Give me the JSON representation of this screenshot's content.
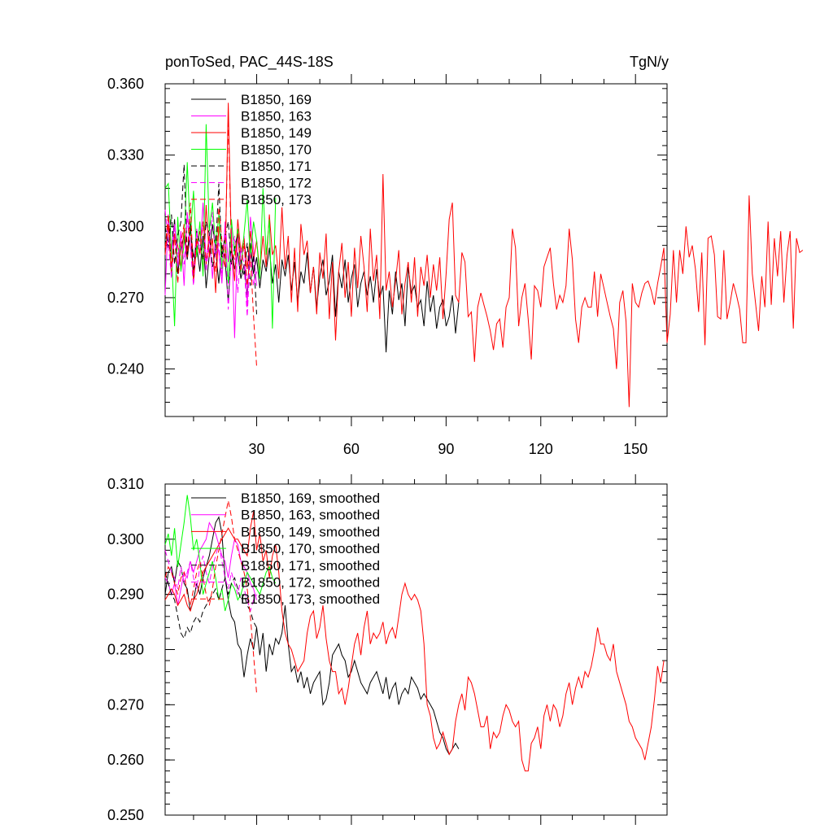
{
  "chart_data": [
    {
      "type": "line",
      "title": "ponToSed, PAC_44S-18S",
      "units": "TgN/y",
      "xlim": [
        1,
        160
      ],
      "ylim": [
        0.22,
        0.36
      ],
      "xticks": [
        30,
        60,
        90,
        120,
        150
      ],
      "yticks": [
        0.24,
        0.27,
        0.3,
        0.33,
        0.36
      ],
      "ytick_labels": [
        "0.240",
        "0.270",
        "0.300",
        "0.330",
        "0.360"
      ],
      "series": [
        {
          "name": "B1850, 169",
          "color": "#000000",
          "dash": "solid",
          "values": [
            0.294,
            0.292,
            0.289,
            0.303,
            0.28,
            0.291,
            0.296,
            0.286,
            0.299,
            0.287,
            0.292,
            0.281,
            0.296,
            0.274,
            0.288,
            0.301,
            0.29,
            0.276,
            0.292,
            0.286,
            0.268,
            0.291,
            0.282,
            0.289,
            0.278,
            0.284,
            0.271,
            0.293,
            0.28,
            0.287,
            0.274,
            0.286,
            0.281,
            0.291,
            0.276,
            0.284,
            0.268,
            0.286,
            0.279,
            0.288,
            0.273,
            0.285,
            0.268,
            0.281,
            0.276,
            0.289,
            0.272,
            0.283,
            0.266,
            0.279,
            0.286,
            0.271,
            0.277,
            0.288,
            0.262,
            0.281,
            0.274,
            0.286,
            0.268,
            0.278,
            0.284,
            0.266,
            0.276,
            0.281,
            0.271,
            0.279,
            0.268,
            0.282,
            0.27,
            0.275,
            0.247,
            0.273,
            0.263,
            0.281,
            0.269,
            0.276,
            0.258,
            0.283,
            0.272,
            0.275,
            0.266,
            0.269,
            0.258,
            0.277,
            0.264,
            0.271,
            0.257,
            0.266,
            0.269,
            0.258,
            0.262,
            0.271,
            0.255,
            0.268
          ]
        },
        {
          "name": "B1850, 163",
          "color": "#ff00ff",
          "dash": "solid",
          "values": [
            0.271,
            0.305,
            0.289,
            0.301,
            0.283,
            0.298,
            0.275,
            0.306,
            0.292,
            0.281,
            0.299,
            0.288,
            0.31,
            0.285,
            0.297,
            0.278,
            0.296,
            0.289,
            0.276,
            0.302,
            0.285,
            0.3,
            0.253,
            0.298,
            0.284,
            0.296,
            0.266,
            0.304,
            0.29,
            0.275
          ]
        },
        {
          "name": "B1850, 149",
          "color": "#ff0000",
          "dash": "solid",
          "values": [
            0.288,
            0.301,
            0.279,
            0.296,
            0.292,
            0.282,
            0.299,
            0.288,
            0.302,
            0.276,
            0.293,
            0.298,
            0.281,
            0.309,
            0.287,
            0.295,
            0.272,
            0.3,
            0.288,
            0.283,
            0.352,
            0.291,
            0.277,
            0.303,
            0.289,
            0.295,
            0.282,
            0.298,
            0.286,
            0.294,
            0.281,
            0.296,
            0.283,
            0.305,
            0.288,
            0.292,
            0.278,
            0.308,
            0.282,
            0.296,
            0.268,
            0.291,
            0.264,
            0.301,
            0.288,
            0.294,
            0.272,
            0.283,
            0.263,
            0.289,
            0.278,
            0.297,
            0.261,
            0.285,
            0.252,
            0.281,
            0.293,
            0.27,
            0.285,
            0.262,
            0.291,
            0.274,
            0.296,
            0.283,
            0.264,
            0.299,
            0.277,
            0.288,
            0.261,
            0.322,
            0.273,
            0.281,
            0.266,
            0.277,
            0.29,
            0.263,
            0.276,
            0.285,
            0.268,
            0.287,
            0.262,
            0.283,
            0.275,
            0.288,
            0.27,
            0.284,
            0.273,
            0.287,
            0.261,
            0.28,
            0.303,
            0.31,
            0.271,
            0.268,
            0.289,
            0.285,
            0.262,
            0.264,
            0.243,
            0.266,
            0.272,
            0.267,
            0.262,
            0.256,
            0.248,
            0.259,
            0.261,
            0.249,
            0.266,
            0.27,
            0.299,
            0.291,
            0.258,
            0.27,
            0.276,
            0.261,
            0.244,
            0.275,
            0.273,
            0.266,
            0.283,
            0.287,
            0.291,
            0.276,
            0.265,
            0.271,
            0.268,
            0.275,
            0.299,
            0.286,
            0.261,
            0.251,
            0.266,
            0.27,
            0.266,
            0.266,
            0.281,
            0.262,
            0.28,
            0.274,
            0.268,
            0.262,
            0.257,
            0.24,
            0.268,
            0.273,
            0.26,
            0.224,
            0.276,
            0.268,
            0.266,
            0.272,
            0.276,
            0.277,
            0.273,
            0.267,
            0.276,
            0.283,
            0.291,
            0.251,
            0.263,
            0.29,
            0.268,
            0.29,
            0.28,
            0.3,
            0.287,
            0.292,
            0.282,
            0.264,
            0.289,
            0.25,
            0.295,
            0.296,
            0.288,
            0.262,
            0.261,
            0.29,
            0.261,
            0.268,
            0.276,
            0.271,
            0.265,
            0.251,
            0.251,
            0.313,
            0.28,
            0.268,
            0.256,
            0.279,
            0.266,
            0.302,
            0.267,
            0.295,
            0.279,
            0.298,
            0.268,
            0.288,
            0.298,
            0.257,
            0.295,
            0.289,
            0.29
          ]
        },
        {
          "name": "B1850, 170",
          "color": "#00ff00",
          "dash": "solid",
          "values": [
            0.316,
            0.318,
            0.289,
            0.258,
            0.304,
            0.281,
            0.293,
            0.327,
            0.296,
            0.315,
            0.287,
            0.302,
            0.279,
            0.343,
            0.298,
            0.31,
            0.291,
            0.305,
            0.282,
            0.296,
            0.276,
            0.303,
            0.288,
            0.299,
            0.281,
            0.297,
            0.311,
            0.286,
            0.302,
            0.294,
            0.278,
            0.316,
            0.288,
            0.303,
            0.257,
            0.312
          ]
        },
        {
          "name": "B1850, 171",
          "color": "#000000",
          "dash": "dash",
          "values": [
            0.3,
            0.291,
            0.305,
            0.284,
            0.296,
            0.302,
            0.326,
            0.288,
            0.301,
            0.279,
            0.298,
            0.293,
            0.286,
            0.302,
            0.297,
            0.283,
            0.291,
            0.318,
            0.287,
            0.296,
            0.302,
            0.284,
            0.291,
            0.297,
            0.286,
            0.279,
            0.293,
            0.275,
            0.288,
            0.263
          ]
        },
        {
          "name": "B1850, 172",
          "color": "#ff00ff",
          "dash": "dash",
          "values": [
            0.307,
            0.293,
            0.278,
            0.301,
            0.287,
            0.296,
            0.284,
            0.303,
            0.291,
            0.275,
            0.298,
            0.288,
            0.302,
            0.281,
            0.294,
            0.306,
            0.287,
            0.293,
            0.279,
            0.299,
            0.265,
            0.29,
            0.296,
            0.272,
            0.291,
            0.284,
            0.262,
            0.289,
            0.275,
            0.281
          ]
        },
        {
          "name": "B1850, 173",
          "color": "#ff0000",
          "dash": "dash",
          "values": [
            0.291,
            0.305,
            0.283,
            0.297,
            0.276,
            0.293,
            0.301,
            0.287,
            0.31,
            0.279,
            0.295,
            0.288,
            0.302,
            0.284,
            0.296,
            0.29,
            0.281,
            0.308,
            0.294,
            0.287,
            0.345,
            0.29,
            0.286,
            0.297,
            0.281,
            0.293,
            0.275,
            0.288,
            0.262,
            0.241
          ]
        }
      ]
    },
    {
      "type": "line",
      "title": "",
      "xlim": [
        1,
        160
      ],
      "ylim": [
        0.25,
        0.31
      ],
      "xticks": [
        30,
        60,
        90,
        120,
        150
      ],
      "yticks": [
        0.25,
        0.26,
        0.27,
        0.28,
        0.29,
        0.3,
        0.31
      ],
      "ytick_labels": [
        "0.250",
        "0.260",
        "0.270",
        "0.280",
        "0.290",
        "0.300",
        "0.310"
      ],
      "series": [
        {
          "name": "B1850, 169, smoothed",
          "color": "#000000",
          "dash": "solid",
          "values": [
            0.29,
            0.294,
            0.295,
            0.292,
            0.296,
            0.295,
            0.292,
            0.291,
            0.287,
            0.289,
            0.292,
            0.29,
            0.293,
            0.295,
            0.297,
            0.3,
            0.303,
            0.304,
            0.301,
            0.293,
            0.289,
            0.286,
            0.285,
            0.281,
            0.28,
            0.275,
            0.279,
            0.282,
            0.28,
            0.284,
            0.279,
            0.283,
            0.276,
            0.281,
            0.279,
            0.282,
            0.281,
            0.283,
            0.288,
            0.281,
            0.276,
            0.277,
            0.274,
            0.276,
            0.273,
            0.275,
            0.272,
            0.274,
            0.275,
            0.276,
            0.27,
            0.271,
            0.274,
            0.279,
            0.28,
            0.281,
            0.279,
            0.278,
            0.275,
            0.276,
            0.278,
            0.276,
            0.274,
            0.273,
            0.272,
            0.274,
            0.275,
            0.276,
            0.274,
            0.272,
            0.275,
            0.271,
            0.273,
            0.274,
            0.27,
            0.272,
            0.273,
            0.272,
            0.275,
            0.274,
            0.273,
            0.271,
            0.272,
            0.271,
            0.27,
            0.269,
            0.267,
            0.265,
            0.264,
            0.262,
            0.261,
            0.262,
            0.263,
            0.262
          ]
        },
        {
          "name": "B1850, 163, smoothed",
          "color": "#ff00ff",
          "dash": "solid",
          "values": [
            0.293,
            0.292,
            0.29,
            0.292,
            0.288,
            0.291,
            0.294,
            0.293,
            0.296,
            0.294,
            0.296,
            0.298,
            0.299,
            0.3,
            0.303,
            0.302,
            0.301,
            0.299,
            0.297,
            0.296,
            0.293,
            0.297,
            0.3,
            0.299,
            0.296,
            0.295,
            0.294,
            0.292,
            0.291,
            0.289
          ]
        },
        {
          "name": "B1850, 149, smoothed",
          "color": "#ff0000",
          "dash": "solid",
          "values": [
            0.289,
            0.29,
            0.291,
            0.29,
            0.288,
            0.289,
            0.29,
            0.288,
            0.287,
            0.289,
            0.29,
            0.292,
            0.294,
            0.295,
            0.296,
            0.297,
            0.298,
            0.299,
            0.3,
            0.301,
            0.302,
            0.301,
            0.3,
            0.3,
            0.299,
            0.298,
            0.297,
            0.302,
            0.305,
            0.298,
            0.301,
            0.296,
            0.298,
            0.293,
            0.297,
            0.299,
            0.294,
            0.287,
            0.283,
            0.281,
            0.28,
            0.278,
            0.276,
            0.277,
            0.278,
            0.283,
            0.286,
            0.287,
            0.282,
            0.284,
            0.288,
            0.282,
            0.278,
            0.276,
            0.276,
            0.272,
            0.273,
            0.27,
            0.273,
            0.277,
            0.281,
            0.283,
            0.279,
            0.284,
            0.287,
            0.281,
            0.283,
            0.282,
            0.283,
            0.285,
            0.281,
            0.283,
            0.284,
            0.282,
            0.286,
            0.29,
            0.292,
            0.29,
            0.289,
            0.29,
            0.289,
            0.287,
            0.281,
            0.27,
            0.268,
            0.264,
            0.262,
            0.263,
            0.265,
            0.263,
            0.261,
            0.262,
            0.267,
            0.27,
            0.272,
            0.269,
            0.275,
            0.274,
            0.272,
            0.269,
            0.266,
            0.266,
            0.268,
            0.262,
            0.265,
            0.264,
            0.265,
            0.268,
            0.27,
            0.269,
            0.267,
            0.266,
            0.267,
            0.26,
            0.258,
            0.258,
            0.263,
            0.264,
            0.266,
            0.262,
            0.268,
            0.27,
            0.267,
            0.27,
            0.269,
            0.266,
            0.268,
            0.272,
            0.274,
            0.27,
            0.273,
            0.275,
            0.273,
            0.276,
            0.275,
            0.277,
            0.28,
            0.284,
            0.281,
            0.281,
            0.279,
            0.278,
            0.281,
            0.276,
            0.274,
            0.272,
            0.27,
            0.267,
            0.266,
            0.264,
            0.263,
            0.262,
            0.26,
            0.263,
            0.266,
            0.271,
            0.277,
            0.274,
            0.278
          ]
        },
        {
          "name": "B1850, 170, smoothed",
          "color": "#00ff00",
          "dash": "solid",
          "values": [
            0.299,
            0.301,
            0.297,
            0.302,
            0.295,
            0.299,
            0.303,
            0.308,
            0.304,
            0.298,
            0.3,
            0.296,
            0.29,
            0.292,
            0.294,
            0.296,
            0.293,
            0.289,
            0.291,
            0.287,
            0.289,
            0.292,
            0.291,
            0.289,
            0.29,
            0.292,
            0.294,
            0.293,
            0.292,
            0.291,
            0.29,
            0.292,
            0.294,
            0.295,
            0.293,
            0.292
          ]
        },
        {
          "name": "B1850, 171, smoothed",
          "color": "#000000",
          "dash": "dash",
          "values": [
            0.294,
            0.292,
            0.29,
            0.289,
            0.286,
            0.283,
            0.282,
            0.284,
            0.283,
            0.285,
            0.286,
            0.285,
            0.287,
            0.288,
            0.289,
            0.29,
            0.291,
            0.289,
            0.291,
            0.293,
            0.29,
            0.292,
            0.293,
            0.291,
            0.289,
            0.29,
            0.288,
            0.287,
            0.285,
            0.284
          ]
        },
        {
          "name": "B1850, 172, smoothed",
          "color": "#ff00ff",
          "dash": "dash",
          "values": [
            0.298,
            0.296,
            0.294,
            0.293,
            0.291,
            0.295,
            0.292,
            0.294,
            0.296,
            0.293,
            0.291,
            0.295,
            0.297,
            0.294,
            0.292,
            0.295,
            0.297,
            0.299,
            0.296,
            0.293,
            0.291,
            0.294,
            0.292,
            0.29,
            0.293,
            0.291,
            0.289,
            0.287,
            0.289,
            0.29
          ]
        },
        {
          "name": "B1850, 173, smoothed",
          "color": "#ff0000",
          "dash": "dash",
          "values": [
            0.293,
            0.295,
            0.294,
            0.292,
            0.29,
            0.293,
            0.294,
            0.29,
            0.288,
            0.291,
            0.294,
            0.296,
            0.293,
            0.29,
            0.288,
            0.291,
            0.295,
            0.298,
            0.301,
            0.304,
            0.307,
            0.304,
            0.3,
            0.298,
            0.296,
            0.294,
            0.291,
            0.286,
            0.279,
            0.272
          ]
        }
      ]
    }
  ]
}
